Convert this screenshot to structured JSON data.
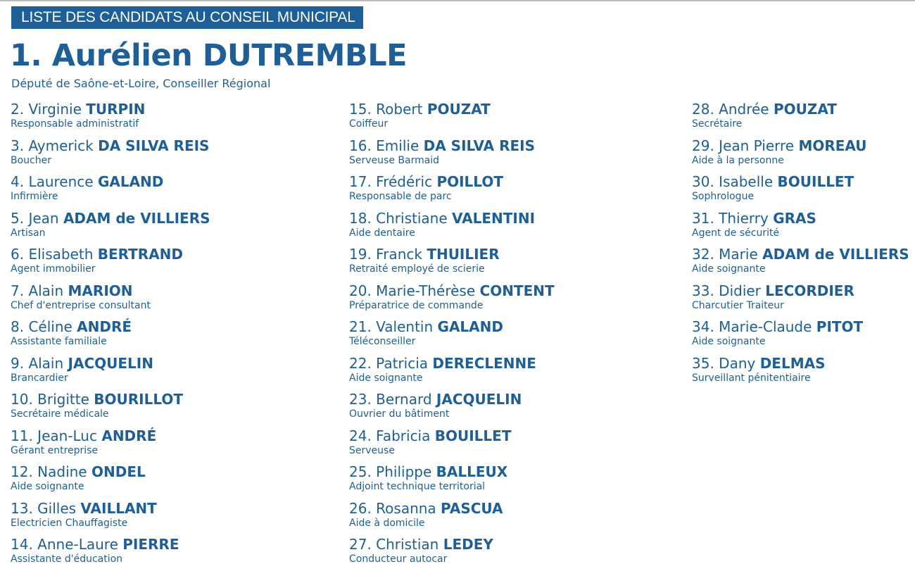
{
  "banner": "LISTE DES CANDIDATS AU CONSEIL MUNICIPAL",
  "head": {
    "title": "1. Aurélien DUTREMBLE",
    "subtitle": "Député de Saône-et-Loire, Conseiller Régional"
  },
  "columns": [
    [
      {
        "first": "2. Virginie",
        "last": "TURPIN",
        "job": "Responsable administratif"
      },
      {
        "first": "3. Aymerick",
        "last": "DA SILVA REIS",
        "job": "Boucher"
      },
      {
        "first": "4. Laurence",
        "last": "GALAND",
        "job": "Infirmière"
      },
      {
        "first": "5. Jean",
        "last": "ADAM de VILLIERS",
        "job": "Artisan"
      },
      {
        "first": "6. Elisabeth",
        "last": "BERTRAND",
        "job": "Agent immobilier"
      },
      {
        "first": "7. Alain",
        "last": "MARION",
        "job": "Chef d'entreprise consultant"
      },
      {
        "first": "8. Céline",
        "last": "ANDRÉ",
        "job": "Assistante familiale"
      },
      {
        "first": "9. Alain",
        "last": "JACQUELIN",
        "job": "Brancardier"
      },
      {
        "first": "10. Brigitte",
        "last": "BOURILLOT",
        "job": "Secrétaire médicale"
      },
      {
        "first": "11. Jean-Luc",
        "last": "ANDRÉ",
        "job": "Gérant entreprise"
      },
      {
        "first": "12. Nadine",
        "last": "ONDEL",
        "job": "Aide soignante"
      },
      {
        "first": "13. Gilles",
        "last": "VAILLANT",
        "job": "Electricien Chauffagiste"
      },
      {
        "first": "14. Anne-Laure",
        "last": "PIERRE",
        "job": "Assistante d'éducation"
      }
    ],
    [
      {
        "first": "15. Robert",
        "last": "POUZAT",
        "job": "Coiffeur"
      },
      {
        "first": "16. Emilie",
        "last": "DA SILVA REIS",
        "job": "Serveuse Barmaid"
      },
      {
        "first": "17. Frédéric",
        "last": "POILLOT",
        "job": "Responsable de parc"
      },
      {
        "first": "18. Christiane",
        "last": "VALENTINI",
        "job": "Aide dentaire"
      },
      {
        "first": "19. Franck",
        "last": "THUILIER",
        "job": "Retraité employé de scierie"
      },
      {
        "first": "20. Marie-Thérèse",
        "last": "CONTENT",
        "job": "Préparatrice de commande"
      },
      {
        "first": "21. Valentin",
        "last": "GALAND",
        "job": "Téléconseiller"
      },
      {
        "first": "22. Patricia",
        "last": "DERECLENNE",
        "job": "Aide soignante"
      },
      {
        "first": "23. Bernard",
        "last": "JACQUELIN",
        "job": "Ouvrier du bâtiment"
      },
      {
        "first": "24. Fabricia",
        "last": "BOUILLET",
        "job": "Serveuse"
      },
      {
        "first": "25. Philippe",
        "last": "BALLEUX",
        "job": "Adjoint technique territorial"
      },
      {
        "first": "26. Rosanna",
        "last": "PASCUA",
        "job": "Aide à domicile"
      },
      {
        "first": "27. Christian",
        "last": "LEDEY",
        "job": "Conducteur autocar"
      }
    ],
    [
      {
        "first": "28. Andrée",
        "last": "POUZAT",
        "job": "Secrétaire"
      },
      {
        "first": "29. Jean Pierre",
        "last": "MOREAU",
        "job": "Aide à la personne"
      },
      {
        "first": "30. Isabelle",
        "last": "BOUILLET",
        "job": "Sophrologue"
      },
      {
        "first": "31. Thierry",
        "last": "GRAS",
        "job": "Agent de sécurité"
      },
      {
        "first": "32. Marie",
        "last": "ADAM de VILLIERS",
        "job": "Aide soignante"
      },
      {
        "first": "33. Didier",
        "last": "LECORDIER",
        "job": "Charcutier Traiteur"
      },
      {
        "first": "34. Marie-Claude",
        "last": "PITOT",
        "job": "Aide soignante"
      },
      {
        "first": "35. Dany",
        "last": "DELMAS",
        "job": "Surveillant pénitentiaire"
      }
    ]
  ]
}
